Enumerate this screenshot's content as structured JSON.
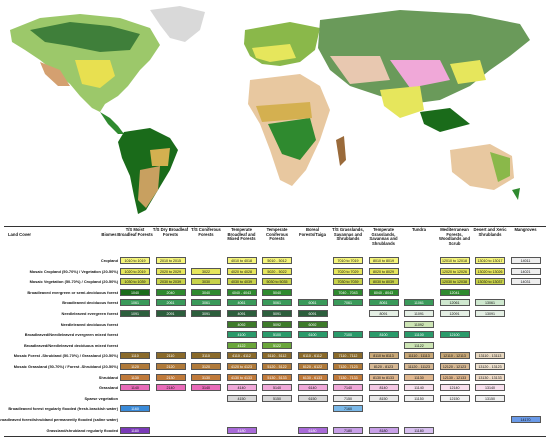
{
  "legend": {
    "land_cover_label": "Land Cover",
    "biomes_label": "Biomes",
    "biomes": [
      "T/S Moist Broadleaf Forests",
      "T/S Dry Broadleaf Forests",
      "T/S Coniferous Forests",
      "Temperate Broadleaf and Mixed Forests",
      "Temperate Coniferous Forests",
      "Boreal Forests/Taiga",
      "T/S Grasslands, Savannas and Shrublands",
      "Temperate Grasslands, Savannas and Shrublands",
      "Tundra",
      "Mediterranean Forests, Woodlands and Scrub",
      "Desert and Xeric Shrublands",
      "Mangroves"
    ],
    "rows": [
      {
        "label": "Cropland",
        "cells": [
          {
            "col": 0,
            "text": "1010 to 1019",
            "color": "#f5f57a"
          },
          {
            "col": 1,
            "text": "2010 to 2015",
            "color": "#f5f57a"
          },
          {
            "col": 3,
            "text": "4010 to 4018",
            "color": "#f5f57a"
          },
          {
            "col": 4,
            "text": "5010 - 5012",
            "color": "#f5f57a"
          },
          {
            "col": 6,
            "text": "7010 to 7019",
            "color": "#f5f57a"
          },
          {
            "col": 7,
            "text": "8010 to 8019",
            "color": "#f5f57a"
          },
          {
            "col": 9,
            "text": "12010 to 12018",
            "color": "#f5f57a"
          },
          {
            "col": 10,
            "text": "13010 to 13017",
            "color": "#f5f57a"
          },
          {
            "col": 11,
            "text": "14011",
            "color": "#eeeeee"
          }
        ]
      },
      {
        "label": "Mosaic Cropland (50-70%) / Vegetation (20-50%)",
        "cells": [
          {
            "col": 0,
            "text": "1020 to 2019",
            "color": "#e6e65c"
          },
          {
            "col": 1,
            "text": "2020 to 2029",
            "color": "#e6e65c"
          },
          {
            "col": 2,
            "text": "3022",
            "color": "#e6e65c"
          },
          {
            "col": 3,
            "text": "4020 to 4028",
            "color": "#e6e65c"
          },
          {
            "col": 4,
            "text": "5020 - 5022",
            "color": "#e6e65c"
          },
          {
            "col": 6,
            "text": "7020 to 7029",
            "color": "#e6e65c"
          },
          {
            "col": 7,
            "text": "8020 to 8029",
            "color": "#e6e65c"
          },
          {
            "col": 9,
            "text": "12020 to 12026",
            "color": "#e6e65c"
          },
          {
            "col": 10,
            "text": "13020 to 13026",
            "color": "#e6e65c"
          },
          {
            "col": 11,
            "text": "14021",
            "color": "#eeeeee"
          }
        ]
      },
      {
        "label": "Mosaic Vegetation (50-70%) / Cropland (20-50%)",
        "cells": [
          {
            "col": 0,
            "text": "1030 to 1039",
            "color": "#c8d24a"
          },
          {
            "col": 1,
            "text": "2030 to 2039",
            "color": "#c8d24a"
          },
          {
            "col": 2,
            "text": "3030",
            "color": "#c8d24a"
          },
          {
            "col": 3,
            "text": "4030 to 4039",
            "color": "#c8d24a"
          },
          {
            "col": 4,
            "text": "5030 to 5035",
            "color": "#c8d24a"
          },
          {
            "col": 6,
            "text": "7030 to 7039",
            "color": "#c8d24a"
          },
          {
            "col": 7,
            "text": "8030 to 8039",
            "color": "#c8d24a"
          },
          {
            "col": 9,
            "text": "12030 to 12038",
            "color": "#c8d24a"
          },
          {
            "col": 10,
            "text": "13030 to 13037",
            "color": "#c8d24a"
          },
          {
            "col": 11,
            "text": "14031",
            "color": "#eeeeee"
          }
        ]
      },
      {
        "label": "Broadleaved evergreen or semi-deciduous forest",
        "cells": [
          {
            "col": 0,
            "text": "1040",
            "color": "#1a6b1a"
          },
          {
            "col": 1,
            "text": "2040",
            "color": "#2f8a2f"
          },
          {
            "col": 2,
            "text": "3040",
            "color": "#2f8a2f"
          },
          {
            "col": 3,
            "text": "4040 - 4043",
            "color": "#2f8a2f"
          },
          {
            "col": 4,
            "text": "5040",
            "color": "#2f8a2f"
          },
          {
            "col": 6,
            "text": "7040 - 7043",
            "color": "#2f8a2f"
          },
          {
            "col": 7,
            "text": "8040 - 8043",
            "color": "#2f8a2f"
          },
          {
            "col": 9,
            "text": "12041",
            "color": "#2f8a2f"
          }
        ]
      },
      {
        "label": "Broadleaved deciduous forest",
        "cells": [
          {
            "col": 0,
            "text": "1061",
            "color": "#3a9a5a"
          },
          {
            "col": 1,
            "text": "2061",
            "color": "#3a9a5a"
          },
          {
            "col": 2,
            "text": "3061",
            "color": "#3a9a5a"
          },
          {
            "col": 3,
            "text": "4061",
            "color": "#3a9a5a"
          },
          {
            "col": 4,
            "text": "5061",
            "color": "#3a9a5a"
          },
          {
            "col": 5,
            "text": "6061",
            "color": "#3a9a5a"
          },
          {
            "col": 6,
            "text": "7061",
            "color": "#3a9a5a"
          },
          {
            "col": 7,
            "text": "8061",
            "color": "#3a9a5a"
          },
          {
            "col": 8,
            "text": "11061",
            "color": "#3a9a5a"
          },
          {
            "col": 9,
            "text": "12061",
            "color": "#cfe8cf"
          },
          {
            "col": 10,
            "text": "13061",
            "color": "#cfe8cf"
          }
        ]
      },
      {
        "label": "Needleleaved evergreen forest",
        "cells": [
          {
            "col": 0,
            "text": "1091",
            "color": "#2c5e3c"
          },
          {
            "col": 1,
            "text": "2091",
            "color": "#2c5e3c"
          },
          {
            "col": 2,
            "text": "3091",
            "color": "#2c5e3c"
          },
          {
            "col": 3,
            "text": "4091",
            "color": "#2c5e3c"
          },
          {
            "col": 4,
            "text": "5091",
            "color": "#2c5e3c"
          },
          {
            "col": 5,
            "text": "6091",
            "color": "#2c5e3c"
          },
          {
            "col": 7,
            "text": "8091",
            "color": "#e4efe4"
          },
          {
            "col": 8,
            "text": "11091",
            "color": "#e4efe4"
          },
          {
            "col": 9,
            "text": "12091",
            "color": "#e4efe4"
          },
          {
            "col": 10,
            "text": "13091",
            "color": "#e4efe4"
          }
        ]
      },
      {
        "label": "Needleleaved deciduous forest",
        "cells": [
          {
            "col": 3,
            "text": "4092",
            "color": "#3d7a2a"
          },
          {
            "col": 4,
            "text": "5092",
            "color": "#3d7a2a"
          },
          {
            "col": 5,
            "text": "6092",
            "color": "#3d7a2a"
          },
          {
            "col": 8,
            "text": "11092",
            "color": "#cde5b5"
          }
        ]
      },
      {
        "label": "Broadleaved/Needleleaved evergreen mixed forest",
        "cells": [
          {
            "col": 3,
            "text": "4100",
            "color": "#2a9a6a"
          },
          {
            "col": 4,
            "text": "5100",
            "color": "#2a9a6a"
          },
          {
            "col": 5,
            "text": "6100",
            "color": "#2a9a6a"
          },
          {
            "col": 6,
            "text": "7100",
            "color": "#2a9a6a"
          },
          {
            "col": 7,
            "text": "8100",
            "color": "#2a9a6a"
          },
          {
            "col": 8,
            "text": "11100",
            "color": "#2a9a6a"
          },
          {
            "col": 9,
            "text": "12100",
            "color": "#2a9a6a"
          }
        ]
      },
      {
        "label": "Broadleaved/Needleleaved deciduous mixed forest",
        "cells": [
          {
            "col": 3,
            "text": "4122",
            "color": "#6aa63a"
          },
          {
            "col": 4,
            "text": "5122",
            "color": "#6aa63a"
          },
          {
            "col": 8,
            "text": "11122",
            "color": "#cde5b5"
          }
        ]
      },
      {
        "label": "Mosaic Forest -Shrubland (50-70%) / Grassland (20-50%)",
        "cells": [
          {
            "col": 0,
            "text": "1110",
            "color": "#8a6a2a"
          },
          {
            "col": 1,
            "text": "2110",
            "color": "#8a6a2a"
          },
          {
            "col": 2,
            "text": "3110",
            "color": "#8a6a2a"
          },
          {
            "col": 3,
            "text": "4110 - 4112",
            "color": "#8a6a2a"
          },
          {
            "col": 4,
            "text": "5110 - 5112",
            "color": "#8a6a2a"
          },
          {
            "col": 5,
            "text": "6110 - 6112",
            "color": "#8a6a2a"
          },
          {
            "col": 6,
            "text": "7110 - 7112",
            "color": "#8a6a2a"
          },
          {
            "col": 7,
            "text": "8110 to 8113",
            "color": "#c8a878"
          },
          {
            "col": 8,
            "text": "11110 - 11113",
            "color": "#c8a878"
          },
          {
            "col": 9,
            "text": "12110 - 12113",
            "color": "#c8a878"
          },
          {
            "col": 10,
            "text": "13110 - 13113",
            "color": "#e8d8c0"
          }
        ]
      },
      {
        "label": "Mosaic Grassland (50-70%) / Forest -Shrubland (20-50%)",
        "cells": [
          {
            "col": 0,
            "text": "1120",
            "color": "#b07a3a"
          },
          {
            "col": 1,
            "text": "2120",
            "color": "#b07a3a"
          },
          {
            "col": 2,
            "text": "3120",
            "color": "#b07a3a"
          },
          {
            "col": 3,
            "text": "4120 to 4123",
            "color": "#b07a3a"
          },
          {
            "col": 4,
            "text": "5120 - 5122",
            "color": "#b07a3a"
          },
          {
            "col": 5,
            "text": "6120 - 6122",
            "color": "#b07a3a"
          },
          {
            "col": 6,
            "text": "7120 - 7123",
            "color": "#b07a3a"
          },
          {
            "col": 7,
            "text": "8120 - 8123",
            "color": "#d6b894"
          },
          {
            "col": 8,
            "text": "11120 - 11123",
            "color": "#d6b894"
          },
          {
            "col": 9,
            "text": "12120 - 12123",
            "color": "#d6b894"
          },
          {
            "col": 10,
            "text": "13120 - 13123",
            "color": "#efe2d0"
          }
        ]
      },
      {
        "label": "Shrubland",
        "cells": [
          {
            "col": 0,
            "text": "1130",
            "color": "#c07a3a"
          },
          {
            "col": 1,
            "text": "2130",
            "color": "#c07a3a"
          },
          {
            "col": 2,
            "text": "3130",
            "color": "#c07a3a"
          },
          {
            "col": 3,
            "text": "4130 to 4133",
            "color": "#c07a3a"
          },
          {
            "col": 4,
            "text": "5130 - 5133",
            "color": "#c07a3a"
          },
          {
            "col": 5,
            "text": "6130 - 6133",
            "color": "#c07a3a"
          },
          {
            "col": 6,
            "text": "7130 - 7133",
            "color": "#c07a3a"
          },
          {
            "col": 7,
            "text": "8130 to 8133",
            "color": "#e0b890"
          },
          {
            "col": 8,
            "text": "11130",
            "color": "#e0b890"
          },
          {
            "col": 9,
            "text": "12130 - 12133",
            "color": "#e0b890"
          },
          {
            "col": 10,
            "text": "13130 - 13133",
            "color": "#f0dcc8"
          }
        ]
      },
      {
        "label": "Grassland",
        "cells": [
          {
            "col": 0,
            "text": "1140",
            "color": "#e86ab8"
          },
          {
            "col": 1,
            "text": "2140",
            "color": "#e86ab8"
          },
          {
            "col": 2,
            "text": "3140",
            "color": "#e86ab8"
          },
          {
            "col": 3,
            "text": "4140",
            "color": "#f0a8d8"
          },
          {
            "col": 4,
            "text": "5140",
            "color": "#f0a8d8"
          },
          {
            "col": 5,
            "text": "6140",
            "color": "#f0a8d8"
          },
          {
            "col": 6,
            "text": "7140",
            "color": "#f0a8d8"
          },
          {
            "col": 7,
            "text": "8140",
            "color": "#f4c8e4"
          },
          {
            "col": 8,
            "text": "11140",
            "color": "#f8e0ee"
          },
          {
            "col": 9,
            "text": "12140",
            "color": "#f8e0ee"
          },
          {
            "col": 10,
            "text": "13140",
            "color": "#f8e0ee"
          }
        ]
      },
      {
        "label": "Sparse vegetation",
        "cells": [
          {
            "col": 3,
            "text": "4150",
            "color": "#d8d8d8"
          },
          {
            "col": 4,
            "text": "5150",
            "color": "#d8d8d8"
          },
          {
            "col": 5,
            "text": "6150",
            "color": "#d8d8d8"
          },
          {
            "col": 6,
            "text": "7150",
            "color": "#e8e8e8"
          },
          {
            "col": 7,
            "text": "8150",
            "color": "#e8e8e8"
          },
          {
            "col": 8,
            "text": "11150",
            "color": "#f0f0f0"
          },
          {
            "col": 9,
            "text": "12150",
            "color": "#f0f0f0"
          },
          {
            "col": 10,
            "text": "13150",
            "color": "#f0f0f0"
          }
        ]
      },
      {
        "label": "Broadleaved forest regularly flooded (fresh-brackish water)",
        "cells": [
          {
            "col": 0,
            "text": "1160",
            "color": "#3a8ad8"
          },
          {
            "col": 6,
            "text": "7160",
            "color": "#7ab8e8"
          }
        ]
      },
      {
        "label": "Broadleaved forest/shrubland permanently flooded (saline water)",
        "cells": [
          {
            "col": 11,
            "text": "14170",
            "color": "#6a9ae8"
          }
        ]
      },
      {
        "label": "Grassland/shrubland regularly flooded",
        "cells": [
          {
            "col": 0,
            "text": "1180",
            "color": "#7a3ab8"
          },
          {
            "col": 3,
            "text": "4180",
            "color": "#a86ad8"
          },
          {
            "col": 5,
            "text": "6180",
            "color": "#a86ad8"
          },
          {
            "col": 6,
            "text": "7180",
            "color": "#c8a0e8"
          },
          {
            "col": 7,
            "text": "8180",
            "color": "#c8a0e8"
          },
          {
            "col": 8,
            "text": "11180",
            "color": "#d8c0f0"
          }
        ]
      }
    ]
  }
}
